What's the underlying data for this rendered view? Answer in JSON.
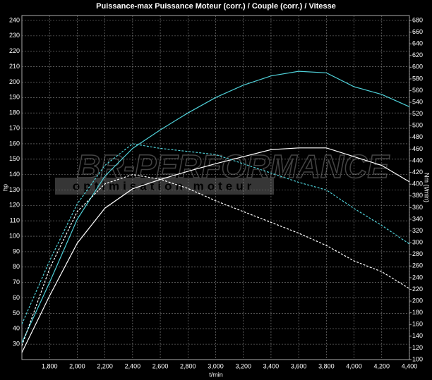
{
  "chart_data": {
    "type": "line",
    "title": "Puissance-max Puissance Moteur (corr.) / Couple (corr.) / Vitesse",
    "watermark": "BR-PERFORMANCE",
    "watermark_subtitle": "optimisation moteur",
    "xlabel": "t/min",
    "ylabel": "hp",
    "y2label": "Nm (t/min)",
    "x": [
      1600,
      1800,
      2000,
      2200,
      2400,
      2600,
      2800,
      3000,
      3200,
      3400,
      3600,
      3800,
      4000,
      4200,
      4400
    ],
    "xlim": [
      1600,
      4400
    ],
    "xticks": [
      {
        "value": 1800,
        "label": "1,800"
      },
      {
        "value": 2000,
        "label": "2,000"
      },
      {
        "value": 2200,
        "label": "2,200"
      },
      {
        "value": 2400,
        "label": "2,400"
      },
      {
        "value": 2600,
        "label": "2,600"
      },
      {
        "value": 2800,
        "label": "2,800"
      },
      {
        "value": 3000,
        "label": "3,000"
      },
      {
        "value": 3200,
        "label": "3,200"
      },
      {
        "value": 3400,
        "label": "3,400"
      },
      {
        "value": 3600,
        "label": "3,600"
      },
      {
        "value": 3800,
        "label": "3,800"
      },
      {
        "value": 4000,
        "label": "4,000"
      },
      {
        "value": 4200,
        "label": "4,200"
      },
      {
        "value": 4400,
        "label": "4,400"
      }
    ],
    "ylim": [
      20,
      240
    ],
    "yticks": [
      30,
      40,
      50,
      60,
      70,
      80,
      90,
      100,
      110,
      120,
      130,
      140,
      150,
      160,
      170,
      180,
      190,
      200,
      210,
      220,
      230,
      240
    ],
    "y2lim": [
      100,
      680
    ],
    "y2ticks": [
      100,
      120,
      140,
      160,
      180,
      200,
      220,
      240,
      260,
      280,
      300,
      320,
      340,
      360,
      380,
      400,
      420,
      440,
      460,
      480,
      500,
      520,
      540,
      560,
      580,
      600,
      620,
      640,
      660,
      680
    ],
    "grid": true,
    "series": [
      {
        "color": "#4fd0d8",
        "dashed": false,
        "values": [
          31,
          70,
          111,
          139,
          157,
          169,
          180,
          190,
          198,
          204,
          207,
          206,
          197,
          192,
          184
        ]
      },
      {
        "color": "#ffffff",
        "dashed": false,
        "axis": "y2",
        "values": [
          112,
          209,
          299,
          359,
          392,
          408,
          422,
          435,
          447,
          459,
          462,
          462,
          447,
          432,
          404
        ]
      },
      {
        "color": "#4fd0d8",
        "dashed": true,
        "values": [
          43,
          84,
          121,
          146,
          160,
          157,
          155,
          153,
          147,
          141,
          135,
          130,
          118,
          107,
          95
        ]
      },
      {
        "color": "#ffffff",
        "dashed": true,
        "values": [
          29,
          79,
          116,
          134,
          140,
          137,
          131,
          123,
          116,
          109,
          102,
          94,
          84,
          77,
          66
        ]
      }
    ]
  }
}
